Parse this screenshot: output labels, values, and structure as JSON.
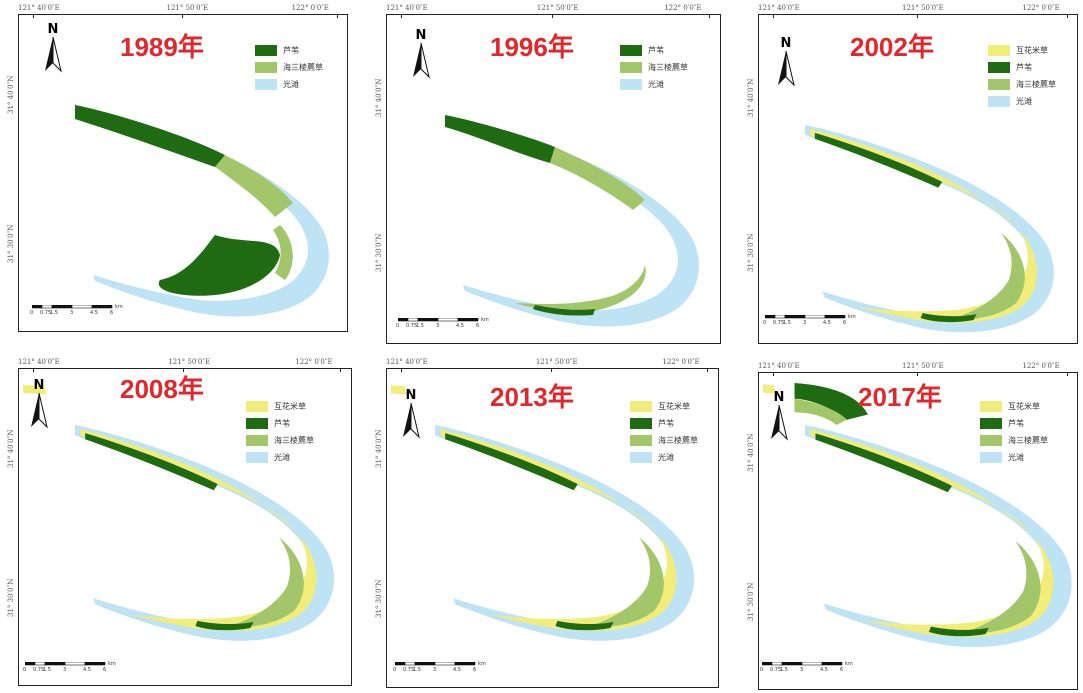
{
  "colors": {
    "reed": "#1f6b12",
    "scirpus": "#a2c76b",
    "spartina": "#f2ec78",
    "mudflat": "#bde3f5",
    "year_red": "#e0272b"
  },
  "north_label": "N",
  "scale_labels": [
    "0",
    "0.75",
    "1.5",
    "3",
    "4.5",
    "6"
  ],
  "scale_unit": "km",
  "panels": [
    {
      "year": "1989年",
      "coords_top": [
        "121° 40′0″E",
        "121° 50′0″E",
        "122° 0′0″E"
      ],
      "coords_left": [
        "31° 40′0″N",
        "31° 30′0″N"
      ],
      "legend": [
        {
          "label": "芦苇",
          "color_key": "reed"
        },
        {
          "label": "海三棱藨草",
          "color_key": "scirpus"
        },
        {
          "label": "光滩",
          "color_key": "mudflat"
        }
      ]
    },
    {
      "year": "1996年",
      "coords_top": [
        "121° 40′0″E",
        "121° 50′0″E",
        "122° 0′0″E"
      ],
      "coords_left": [
        "31° 40′0″N",
        "31° 30′0″N"
      ],
      "legend": [
        {
          "label": "芦苇",
          "color_key": "reed"
        },
        {
          "label": "海三棱藨草",
          "color_key": "scirpus"
        },
        {
          "label": "光滩",
          "color_key": "mudflat"
        }
      ]
    },
    {
      "year": "2002年",
      "coords_top": [
        "121° 40′0″E",
        "121° 50′0″E",
        "122° 0′0″E"
      ],
      "coords_left": [
        "31° 40′0″N",
        "31° 30′0″N"
      ],
      "legend": [
        {
          "label": "互花米草",
          "color_key": "spartina"
        },
        {
          "label": "芦苇",
          "color_key": "reed"
        },
        {
          "label": "海三棱藨草",
          "color_key": "scirpus"
        },
        {
          "label": "光滩",
          "color_key": "mudflat"
        }
      ]
    },
    {
      "year": "2008年",
      "coords_top": [
        "121° 40′0″E",
        "121° 50′0″E",
        "122° 0′0″E"
      ],
      "coords_left": [
        "31° 40′0″N",
        "31° 30′0″N"
      ],
      "legend": [
        {
          "label": "互花米草",
          "color_key": "spartina"
        },
        {
          "label": "芦苇",
          "color_key": "reed"
        },
        {
          "label": "海三棱藨草",
          "color_key": "scirpus"
        },
        {
          "label": "光滩",
          "color_key": "mudflat"
        }
      ]
    },
    {
      "year": "2013年",
      "coords_top": [
        "121° 40′0″E",
        "121° 50′0″E",
        "122° 0′0″E"
      ],
      "coords_left": [
        "31° 40′0″N",
        "31° 30′0″N"
      ],
      "legend": [
        {
          "label": "互花米草",
          "color_key": "spartina"
        },
        {
          "label": "芦苇",
          "color_key": "reed"
        },
        {
          "label": "海三棱藨草",
          "color_key": "scirpus"
        },
        {
          "label": "光滩",
          "color_key": "mudflat"
        }
      ]
    },
    {
      "year": "2017年",
      "coords_top": [
        "121° 40′0″E",
        "121° 50′0″E",
        "122° 0′0″E"
      ],
      "coords_left": [
        "31° 40′0″N",
        "31° 30′0″N"
      ],
      "legend": [
        {
          "label": "互花米草",
          "color_key": "spartina"
        },
        {
          "label": "芦苇",
          "color_key": "reed"
        },
        {
          "label": "海三棱藨草",
          "color_key": "scirpus"
        },
        {
          "label": "光滩",
          "color_key": "mudflat"
        }
      ]
    }
  ]
}
